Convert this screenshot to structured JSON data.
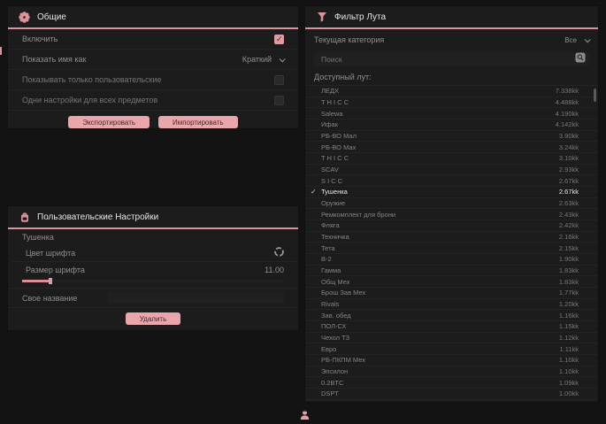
{
  "colors": {
    "accent": "#dd939a",
    "button": "#e9a6ab",
    "panel_bg": "#1c1c1c",
    "page_bg": "#131313"
  },
  "general": {
    "title": "Общие",
    "rows": [
      {
        "label": "Включить",
        "control": "checkbox",
        "checked": true
      },
      {
        "label": "Показать имя как",
        "control": "dropdown",
        "value": "Краткий"
      },
      {
        "label": "Показывать только пользовательские",
        "control": "checkbox",
        "checked": false
      },
      {
        "label": "Одни настройки для всех предметов",
        "control": "checkbox",
        "checked": false
      }
    ],
    "export_label": "Экспортировать",
    "import_label": "Импортировать"
  },
  "user_settings": {
    "title": "Пользовательские Настройки",
    "selected_item": "Тушенка",
    "font_color_label": "Цвет шрифта",
    "font_size_label": "Размер шрифта",
    "font_size_value": "11.00",
    "custom_name_label": "Свое название",
    "custom_name_value": "",
    "delete_label": "Удалить"
  },
  "loot_filter": {
    "title": "Фильтр Лута",
    "category_label": "Текущая категория",
    "category_value": "Все",
    "search_placeholder": "Поиск",
    "list_label": "Доступный лут:",
    "items": [
      {
        "name": "ЛЕДХ",
        "value": "7.338kk",
        "checked": false
      },
      {
        "name": "T H I C C",
        "value": "4.488kk",
        "checked": false
      },
      {
        "name": "Salewa",
        "value": "4.190kk",
        "checked": false
      },
      {
        "name": "Ифак",
        "value": "4.142kk",
        "checked": false
      },
      {
        "name": "РБ-ВО Мал",
        "value": "3.90kk",
        "checked": false
      },
      {
        "name": "РБ-ВО Мах",
        "value": "3.24kk",
        "checked": false
      },
      {
        "name": "T H I C C",
        "value": "3.10kk",
        "checked": false
      },
      {
        "name": "SCAV",
        "value": "2.93kk",
        "checked": false
      },
      {
        "name": "S I C C",
        "value": "2.67kk",
        "checked": false
      },
      {
        "name": "Тушенка",
        "value": "2.67kk",
        "checked": true
      },
      {
        "name": "Оружие",
        "value": "2.63kk",
        "checked": false
      },
      {
        "name": "Ремкомплект для брони",
        "value": "2.43kk",
        "checked": false
      },
      {
        "name": "Фляга",
        "value": "2.42kk",
        "checked": false
      },
      {
        "name": "Техничка",
        "value": "2.16kk",
        "checked": false
      },
      {
        "name": "Тета",
        "value": "2.15kk",
        "checked": false
      },
      {
        "name": "В-2",
        "value": "1.90kk",
        "checked": false
      },
      {
        "name": "Гамма",
        "value": "1.83kk",
        "checked": false
      },
      {
        "name": "Общ Мех",
        "value": "1.83kk",
        "checked": false
      },
      {
        "name": "Брош Зав Мех",
        "value": "1.77kk",
        "checked": false
      },
      {
        "name": "Rivals",
        "value": "1.20kk",
        "checked": false
      },
      {
        "name": "Зав. обед",
        "value": "1.16kk",
        "checked": false
      },
      {
        "name": "ПОЛ-СХ",
        "value": "1.15kk",
        "checked": false
      },
      {
        "name": "Чехол ТЗ",
        "value": "1.12kk",
        "checked": false
      },
      {
        "name": "Евро",
        "value": "1.11kk",
        "checked": false
      },
      {
        "name": "РБ-ПКПМ Мех",
        "value": "1.10kk",
        "checked": false
      },
      {
        "name": "Эпсилон",
        "value": "1.10kk",
        "checked": false
      },
      {
        "name": "0.2BTC",
        "value": "1.09kk",
        "checked": false
      },
      {
        "name": "DSPT",
        "value": "1.00kk",
        "checked": false
      }
    ]
  }
}
